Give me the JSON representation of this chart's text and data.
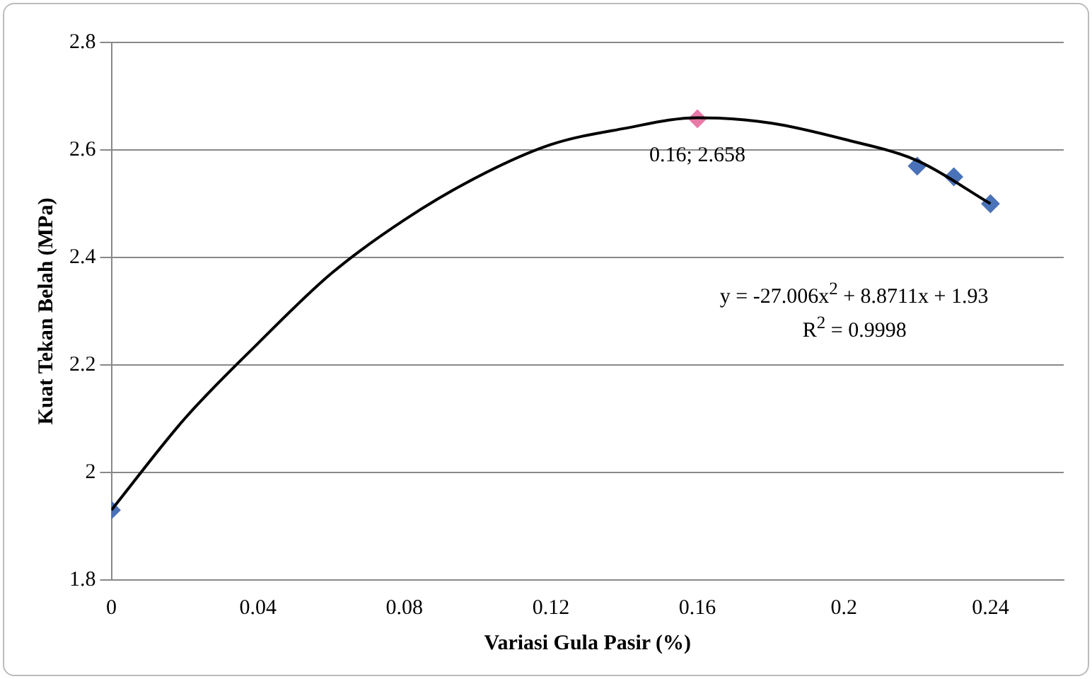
{
  "chart_data": {
    "type": "scatter",
    "xlabel": "Variasi Gula Pasir (%)",
    "ylabel": "Kuat Tekan Belah (MPa)",
    "xlim": [
      0,
      0.26
    ],
    "xticks": [
      0,
      0.04,
      0.08,
      0.12,
      0.16,
      0.2,
      0.24
    ],
    "ylim": [
      1.8,
      2.8
    ],
    "yticks": [
      1.8,
      2,
      2.2,
      2.4,
      2.6,
      2.8
    ],
    "grid": "y",
    "legend": false,
    "series": [
      {
        "type": "line",
        "marker": "none",
        "color": "#000000",
        "x": [
          0,
          0.02,
          0.04,
          0.06,
          0.08,
          0.1,
          0.12,
          0.14,
          0.16,
          0.18,
          0.2,
          0.22,
          0.24
        ],
        "values": [
          1.93,
          2.1,
          2.24,
          2.37,
          2.47,
          2.55,
          2.61,
          2.64,
          2.66,
          2.65,
          2.62,
          2.58,
          2.5
        ]
      },
      {
        "marker": "diamond",
        "x": [
          0,
          0.16,
          0.22,
          0.23,
          0.24
        ],
        "values": [
          1.93,
          2.658,
          2.57,
          2.55,
          2.5
        ],
        "colors": [
          "#4a72b8",
          "#e87aa8",
          "#4a72b8",
          "#4a72b8",
          "#4a72b8"
        ]
      }
    ],
    "annotations": [
      {
        "text": "0.16; 2.658",
        "x": 0.16,
        "y": 2.658
      },
      "y = -27.006x$^{2}$ + 8.8711x + 1.93",
      "R$^{2}$ = 0.9998"
    ]
  }
}
